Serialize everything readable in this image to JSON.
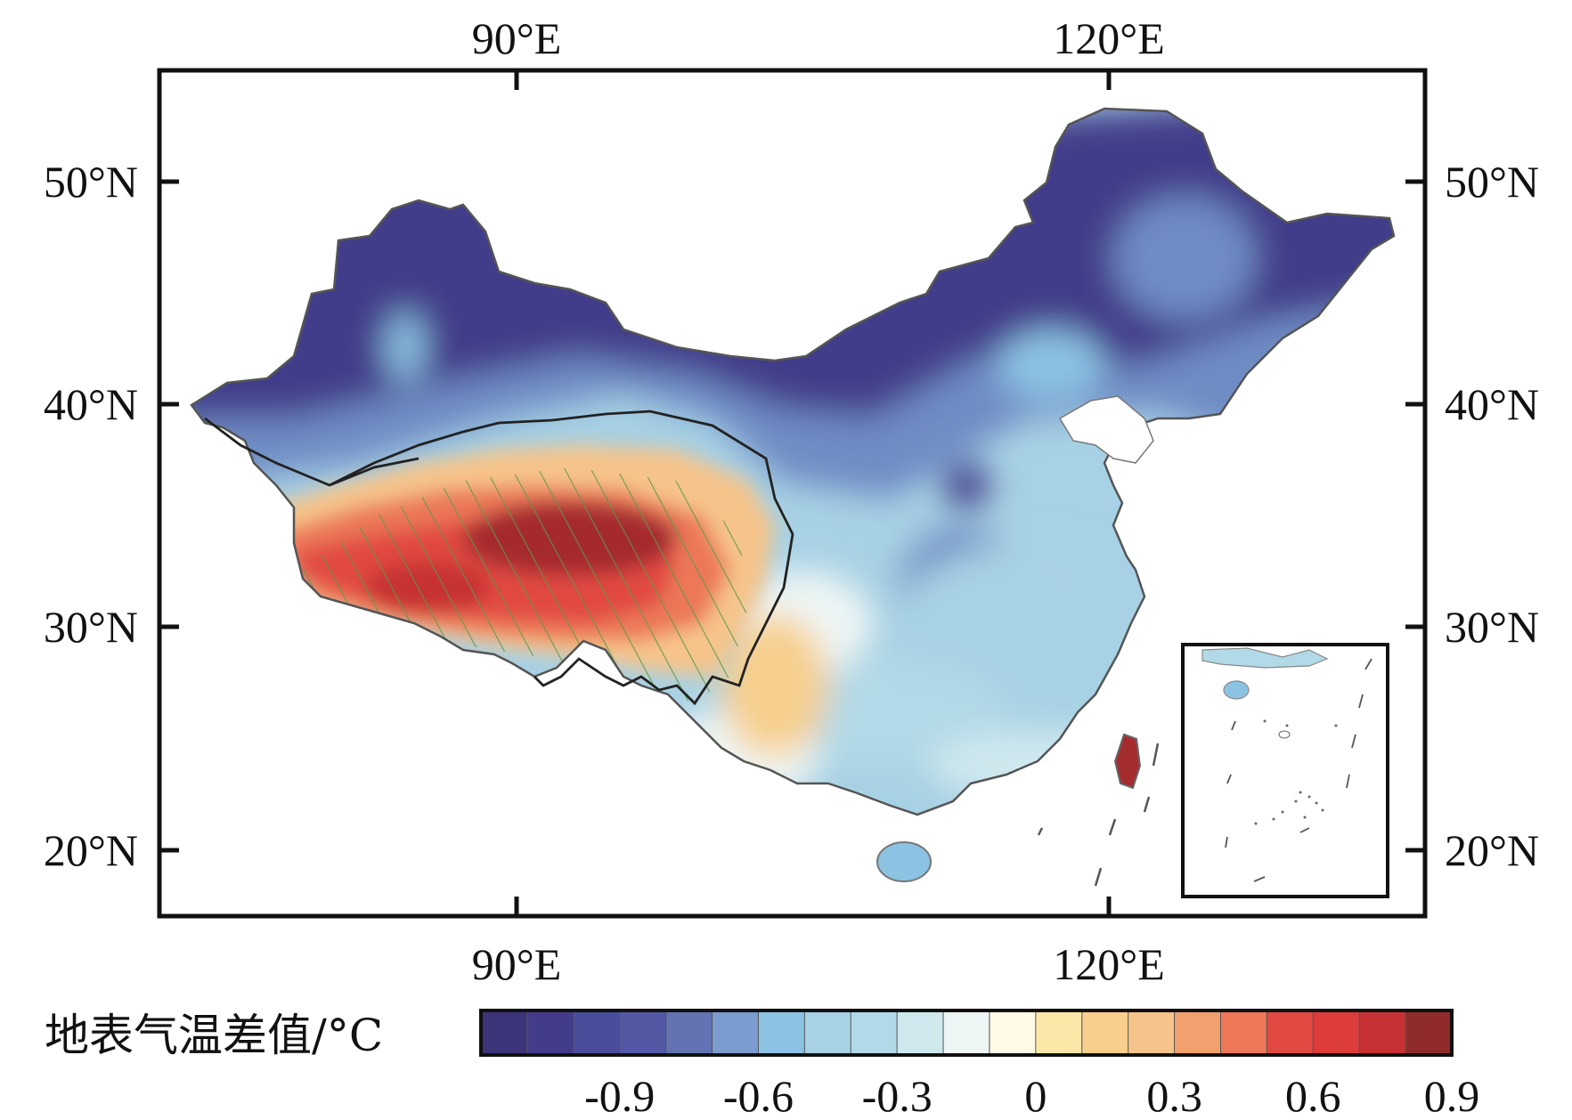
{
  "map": {
    "axes": {
      "top_ticks": [
        {
          "label": "90°E",
          "lon": 90
        },
        {
          "label": "120°E",
          "lon": 120
        }
      ],
      "bottom_ticks": [
        {
          "label": "90°E",
          "lon": 90
        },
        {
          "label": "120°E",
          "lon": 120
        }
      ],
      "left_ticks": [
        {
          "label": "50°N",
          "lat": 50
        },
        {
          "label": "40°N",
          "lat": 40
        },
        {
          "label": "30°N",
          "lat": 30
        },
        {
          "label": "20°N",
          "lat": 20
        }
      ],
      "right_ticks": [
        {
          "label": "50°N",
          "lat": 50
        },
        {
          "label": "40°N",
          "lat": 40
        },
        {
          "label": "30°N",
          "lat": 30
        },
        {
          "label": "20°N",
          "lat": 20
        }
      ],
      "lon_range": [
        72,
        136
      ],
      "lat_range": [
        17,
        55
      ]
    },
    "colorbar": {
      "title": "地表气温差值/°C",
      "colors": [
        "#3b3479",
        "#433c8a",
        "#4a4d9b",
        "#5358a5",
        "#6372b2",
        "#7a9ccf",
        "#8cc3e3",
        "#a7d1e4",
        "#b2d9e7",
        "#cfe8ee",
        "#eef6f5",
        "#fffbe6",
        "#fbe8a8",
        "#f8cf8c",
        "#f6c48a",
        "#f1a06e",
        "#ec7858",
        "#e14a42",
        "#dc3c3a",
        "#c73133",
        "#8f2b2b"
      ],
      "labels": [
        "-0.9",
        "-0.6",
        "-0.3",
        "0",
        "0.3",
        "0.6",
        "0.9"
      ]
    },
    "legend_colors": {
      "cold": "#433c8a",
      "cool": "#6f8cc4",
      "light_blue": "#a7d1e4",
      "neutral": "#eef6f5",
      "warm": "#f6c48a",
      "hot": "#e14a42",
      "very_hot": "#a52c2e",
      "hatch": "#5a9a4a",
      "outline": "#444444"
    }
  }
}
